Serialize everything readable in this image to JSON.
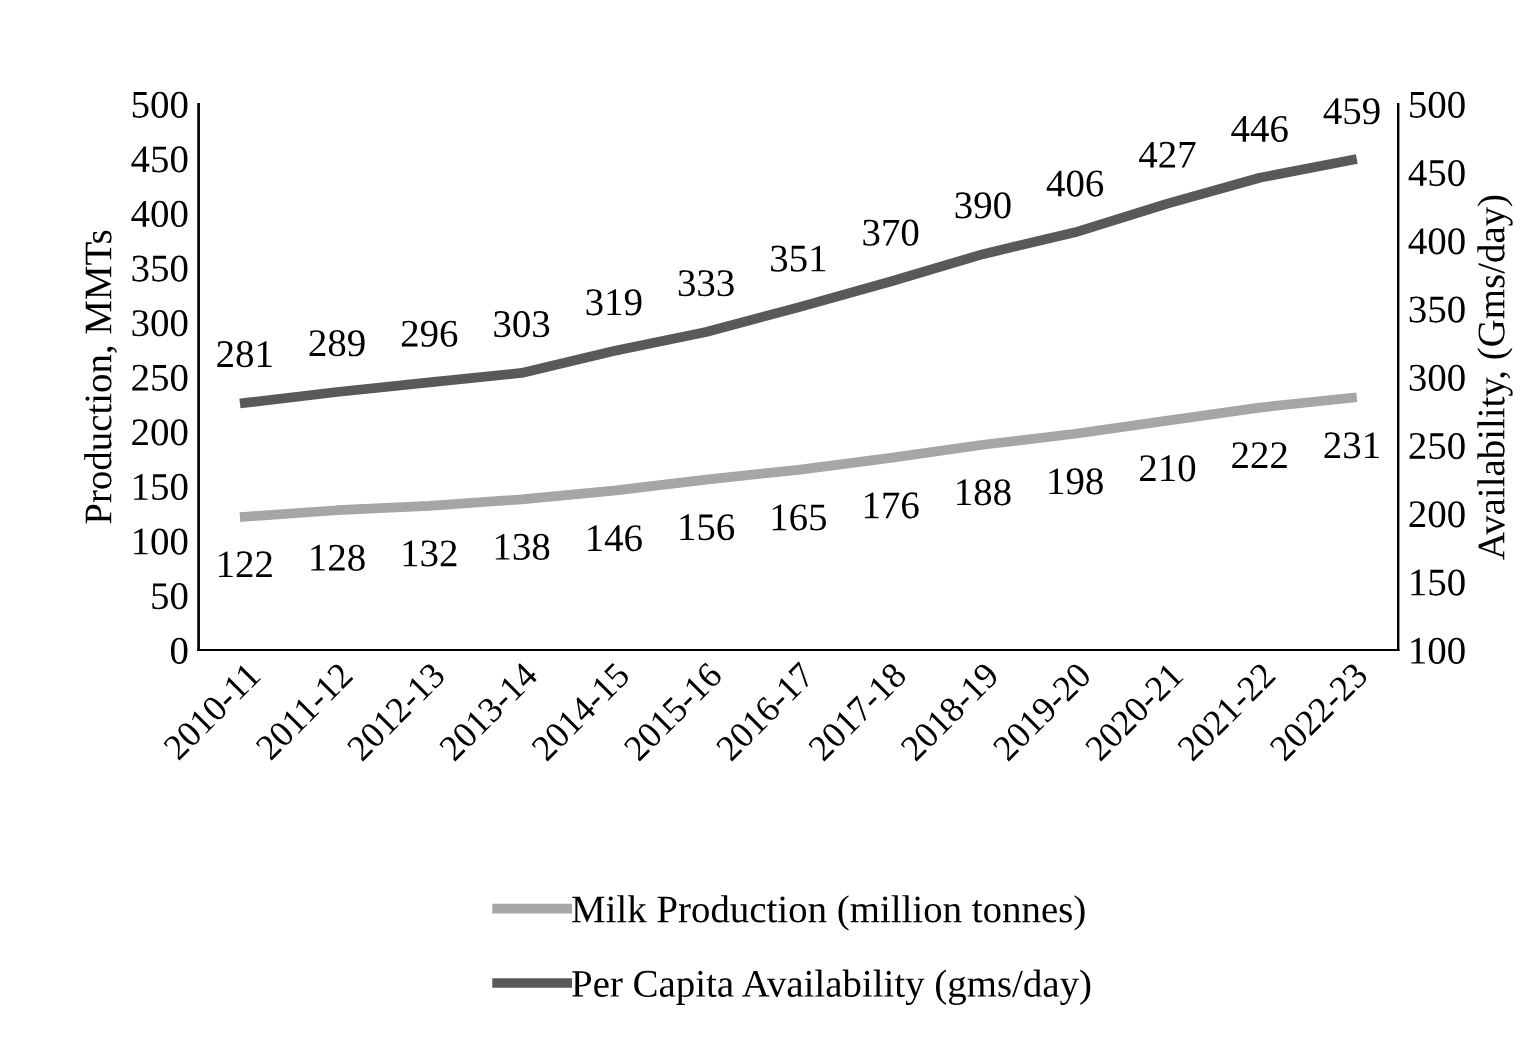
{
  "chart_data": {
    "type": "line",
    "ylabel": "Production, MMTs",
    "y2label": "Availability, (Gms/day)",
    "categories": [
      "2010-11",
      "2011-12",
      "2012-13",
      "2013-14",
      "2014-15",
      "2015-16",
      "2016-17",
      "2017-18",
      "2018-19",
      "2019-20",
      "2020-21",
      "2021-22",
      "2022-23"
    ],
    "series": [
      {
        "name": "Milk Production (million tonnes)",
        "color": "#a6a6a6",
        "values": [
          122,
          128,
          132,
          138,
          146,
          156,
          165,
          176,
          188,
          198,
          210,
          222,
          231
        ]
      },
      {
        "name": "Per Capita Availability (gms/day)",
        "color": "#595959",
        "axis": "y2",
        "values": [
          281,
          289,
          296,
          303,
          319,
          333,
          351,
          370,
          390,
          406,
          427,
          446,
          459
        ]
      }
    ],
    "ylim": [
      0,
      500
    ],
    "yticks": [
      0,
      50,
      100,
      150,
      200,
      250,
      300,
      350,
      400,
      450,
      500
    ],
    "y2lim": [
      100,
      500
    ],
    "y2ticks": [
      100,
      150,
      200,
      250,
      300,
      350,
      400,
      450,
      500
    ],
    "data_labels": true,
    "legend": "bottom",
    "grid": false,
    "marker": "none",
    "line_style": "solid"
  }
}
